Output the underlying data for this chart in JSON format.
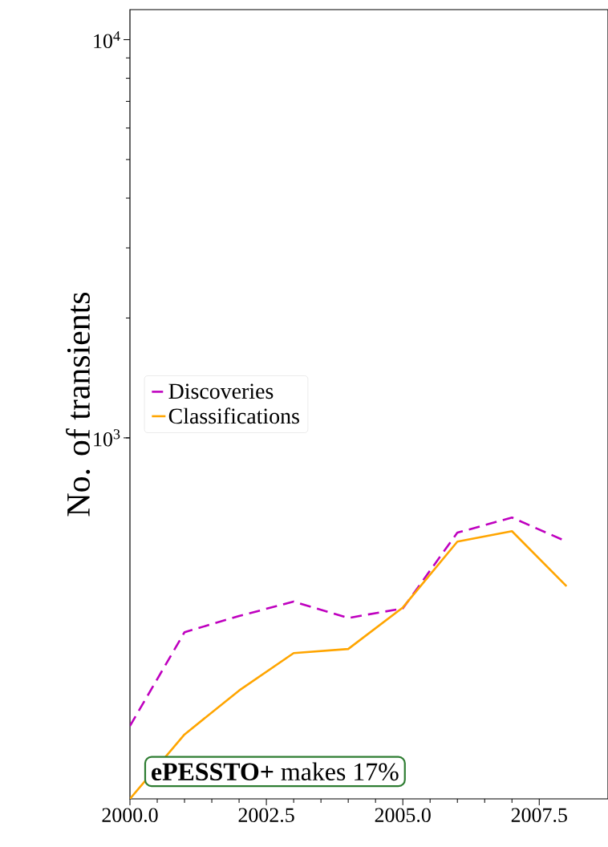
{
  "chart_data": {
    "type": "line",
    "ylabel": "No. of transients",
    "log": "y",
    "legend": "left",
    "x": [
      2000,
      2001,
      2002,
      2003,
      2004,
      2005,
      2006,
      2007,
      2008
    ],
    "series": [
      {
        "name": "Discoveries",
        "color": "#bf00bf",
        "line_style": "dashed",
        "values": [
          189,
          325,
          357,
          388,
          353,
          373,
          578,
          631,
          549
        ]
      },
      {
        "name": "Classifications",
        "color": "#ffa500",
        "line_style": "solid",
        "values": [
          124,
          180,
          232,
          288,
          295,
          375,
          549,
          583,
          424
        ]
      }
    ],
    "xlim": [
      2000,
      2008.76
    ],
    "ylim": [
      124,
      11900
    ],
    "xticks": [
      {
        "value": 2000,
        "label": "2000.0"
      },
      {
        "value": 2002.5,
        "label": "2002.5"
      },
      {
        "value": 2005,
        "label": "2005.0"
      },
      {
        "value": 2007.5,
        "label": "2007.5"
      }
    ],
    "yticks": [
      {
        "value": 1000,
        "label": "10$^{3}$"
      },
      {
        "value": 10000,
        "label": "10$^{4}$"
      }
    ],
    "annotations": [
      "**ePESSTO+** makes 17%"
    ]
  }
}
